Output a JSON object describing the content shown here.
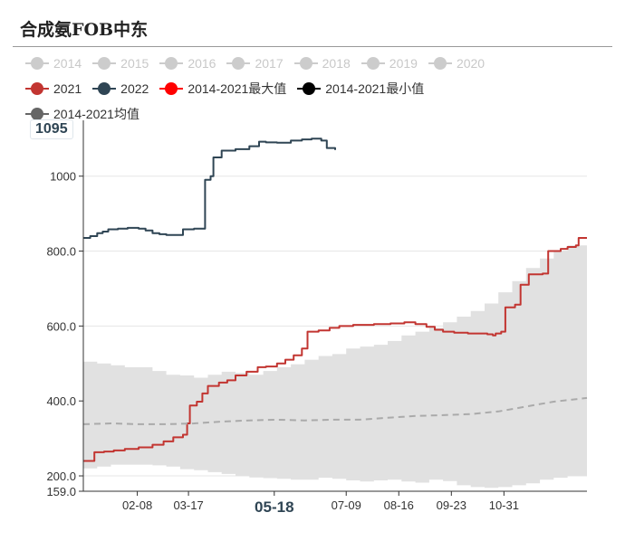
{
  "page": {
    "title": "合成氨FOB中东"
  },
  "legend": {
    "rows": [
      [
        {
          "label": "2014",
          "color": "#cccccc",
          "active": false
        },
        {
          "label": "2015",
          "color": "#cccccc",
          "active": false
        },
        {
          "label": "2016",
          "color": "#cccccc",
          "active": false
        },
        {
          "label": "2017",
          "color": "#cccccc",
          "active": false
        },
        {
          "label": "2018",
          "color": "#cccccc",
          "active": false
        },
        {
          "label": "2019",
          "color": "#cccccc",
          "active": false
        },
        {
          "label": "2020",
          "color": "#cccccc",
          "active": false
        }
      ],
      [
        {
          "label": "2021",
          "color": "#c23531",
          "active": true
        },
        {
          "label": "2022",
          "color": "#2f4554",
          "active": true
        },
        {
          "label": "2014-2021最大值",
          "color": "#ff0000",
          "active": true
        },
        {
          "label": "2014-2021最小值",
          "color": "#000000",
          "active": true
        }
      ],
      [
        {
          "label": "2014-2021均值",
          "color": "#666666",
          "active": true
        }
      ]
    ]
  },
  "chart_data": {
    "type": "line",
    "y_min": 159.0,
    "y_max": 1149.0,
    "y_ticks": [
      {
        "value": 159.0,
        "label": "159.0"
      },
      {
        "value": 200,
        "label": "200.0"
      },
      {
        "value": 400,
        "label": "400.0"
      },
      {
        "value": 600,
        "label": "600.0"
      },
      {
        "value": 800,
        "label": "800.0"
      },
      {
        "value": 1000,
        "label": "1000"
      }
    ],
    "x_ticks": [
      {
        "day": 39,
        "label": "02-08"
      },
      {
        "day": 76,
        "label": "03-17"
      },
      {
        "day": 138,
        "label": "05-18",
        "highlight": true
      },
      {
        "day": 190,
        "label": "07-09"
      },
      {
        "day": 228,
        "label": "08-16"
      },
      {
        "day": 266,
        "label": "09-23"
      },
      {
        "day": 304,
        "label": "10-31"
      }
    ],
    "hover_label": "1095",
    "band_upper": [
      [
        0,
        505
      ],
      [
        10,
        500
      ],
      [
        20,
        495
      ],
      [
        30,
        490
      ],
      [
        40,
        490
      ],
      [
        50,
        480
      ],
      [
        60,
        470
      ],
      [
        70,
        468
      ],
      [
        80,
        462
      ],
      [
        90,
        470
      ],
      [
        100,
        478
      ],
      [
        110,
        475
      ],
      [
        120,
        470
      ],
      [
        130,
        480
      ],
      [
        140,
        490
      ],
      [
        150,
        498
      ],
      [
        160,
        510
      ],
      [
        170,
        520
      ],
      [
        180,
        525
      ],
      [
        190,
        540
      ],
      [
        200,
        545
      ],
      [
        210,
        550
      ],
      [
        220,
        560
      ],
      [
        230,
        575
      ],
      [
        240,
        585
      ],
      [
        250,
        595
      ],
      [
        260,
        610
      ],
      [
        270,
        625
      ],
      [
        280,
        640
      ],
      [
        290,
        660
      ],
      [
        300,
        690
      ],
      [
        310,
        720
      ],
      [
        320,
        755
      ],
      [
        330,
        780
      ],
      [
        340,
        800
      ],
      [
        350,
        815
      ],
      [
        364,
        835
      ]
    ],
    "band_lower": [
      [
        0,
        220
      ],
      [
        10,
        225
      ],
      [
        20,
        230
      ],
      [
        30,
        230
      ],
      [
        40,
        230
      ],
      [
        50,
        228
      ],
      [
        60,
        225
      ],
      [
        70,
        218
      ],
      [
        80,
        215
      ],
      [
        90,
        210
      ],
      [
        100,
        205
      ],
      [
        110,
        200
      ],
      [
        120,
        196
      ],
      [
        130,
        194
      ],
      [
        140,
        192
      ],
      [
        150,
        190
      ],
      [
        160,
        190
      ],
      [
        170,
        195
      ],
      [
        180,
        192
      ],
      [
        190,
        188
      ],
      [
        200,
        185
      ],
      [
        210,
        188
      ],
      [
        220,
        190
      ],
      [
        230,
        185
      ],
      [
        240,
        182
      ],
      [
        250,
        190
      ],
      [
        260,
        186
      ],
      [
        270,
        175
      ],
      [
        280,
        170
      ],
      [
        290,
        168
      ],
      [
        300,
        170
      ],
      [
        310,
        175
      ],
      [
        320,
        180
      ],
      [
        330,
        190
      ],
      [
        340,
        195
      ],
      [
        350,
        200
      ],
      [
        364,
        208
      ]
    ],
    "series": [
      {
        "name": "2021",
        "color": "#c23531",
        "points": [
          [
            0,
            240
          ],
          [
            5,
            240
          ],
          [
            8,
            263
          ],
          [
            15,
            265
          ],
          [
            22,
            268
          ],
          [
            30,
            272
          ],
          [
            40,
            276
          ],
          [
            50,
            283
          ],
          [
            58,
            292
          ],
          [
            65,
            303
          ],
          [
            72,
            310
          ],
          [
            75,
            340
          ],
          [
            77,
            388
          ],
          [
            82,
            398
          ],
          [
            86,
            420
          ],
          [
            90,
            440
          ],
          [
            98,
            449
          ],
          [
            104,
            455
          ],
          [
            110,
            468
          ],
          [
            118,
            478
          ],
          [
            126,
            490
          ],
          [
            132,
            492
          ],
          [
            140,
            500
          ],
          [
            146,
            510
          ],
          [
            152,
            522
          ],
          [
            158,
            540
          ],
          [
            162,
            585
          ],
          [
            170,
            588
          ],
          [
            178,
            595
          ],
          [
            185,
            600
          ],
          [
            195,
            603
          ],
          [
            210,
            605
          ],
          [
            222,
            607
          ],
          [
            232,
            610
          ],
          [
            240,
            605
          ],
          [
            248,
            598
          ],
          [
            254,
            590
          ],
          [
            260,
            585
          ],
          [
            268,
            582
          ],
          [
            278,
            580
          ],
          [
            292,
            578
          ],
          [
            296,
            575
          ],
          [
            298,
            580
          ],
          [
            302,
            585
          ],
          [
            305,
            650
          ],
          [
            312,
            657
          ],
          [
            316,
            710
          ],
          [
            322,
            738
          ],
          [
            332,
            740
          ],
          [
            336,
            800
          ],
          [
            345,
            806
          ],
          [
            350,
            811
          ],
          [
            356,
            815
          ],
          [
            358,
            835
          ],
          [
            364,
            835
          ]
        ]
      },
      {
        "name": "2022",
        "color": "#2f4554",
        "points": [
          [
            0,
            835
          ],
          [
            5,
            840
          ],
          [
            10,
            848
          ],
          [
            14,
            852
          ],
          [
            18,
            858
          ],
          [
            25,
            860
          ],
          [
            32,
            862
          ],
          [
            40,
            860
          ],
          [
            45,
            855
          ],
          [
            50,
            848
          ],
          [
            55,
            845
          ],
          [
            60,
            843
          ],
          [
            68,
            843
          ],
          [
            72,
            858
          ],
          [
            80,
            860
          ],
          [
            86,
            860
          ],
          [
            88,
            990
          ],
          [
            92,
            1000
          ],
          [
            94,
            1050
          ],
          [
            100,
            1068
          ],
          [
            110,
            1072
          ],
          [
            120,
            1080
          ],
          [
            127,
            1092
          ],
          [
            132,
            1090
          ],
          [
            140,
            1089
          ],
          [
            150,
            1095
          ],
          [
            158,
            1098
          ],
          [
            165,
            1100
          ],
          [
            170,
            1100
          ],
          [
            172,
            1095
          ],
          [
            176,
            1075
          ],
          [
            182,
            1070
          ]
        ]
      },
      {
        "name": "2014-2021均值",
        "color": "#aaaaaa",
        "dashed": true,
        "points": [
          [
            0,
            338
          ],
          [
            20,
            340
          ],
          [
            40,
            338
          ],
          [
            60,
            338
          ],
          [
            80,
            340
          ],
          [
            100,
            345
          ],
          [
            120,
            348
          ],
          [
            140,
            350
          ],
          [
            160,
            348
          ],
          [
            180,
            350
          ],
          [
            200,
            350
          ],
          [
            220,
            355
          ],
          [
            240,
            360
          ],
          [
            260,
            362
          ],
          [
            280,
            365
          ],
          [
            300,
            372
          ],
          [
            320,
            385
          ],
          [
            340,
            398
          ],
          [
            364,
            408
          ]
        ]
      }
    ]
  }
}
